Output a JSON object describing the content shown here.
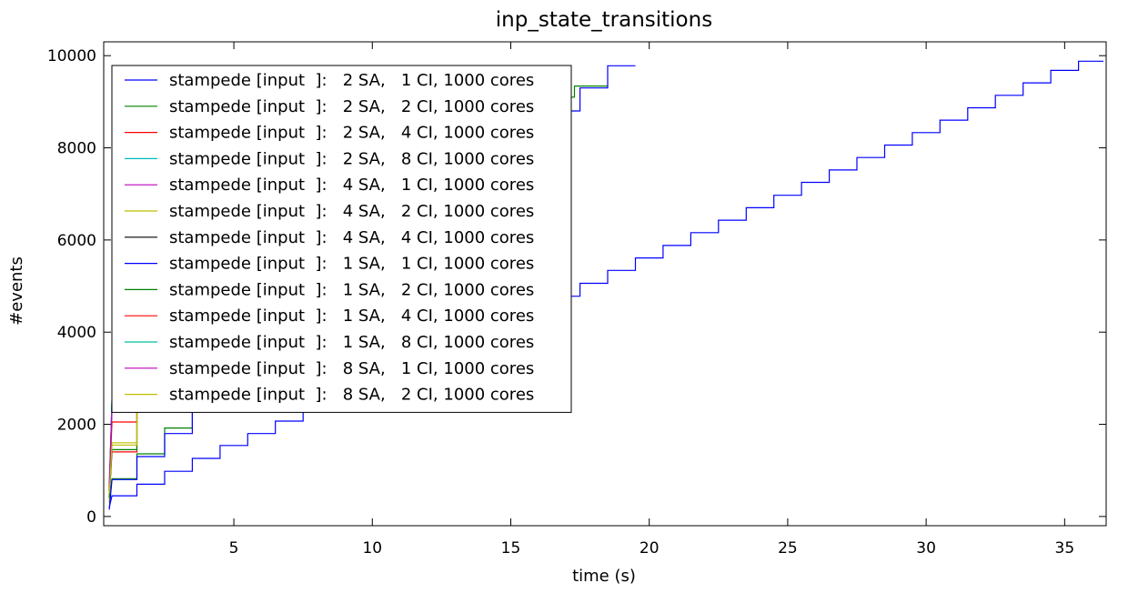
{
  "chart_data": {
    "type": "line",
    "step": true,
    "title": "inp_state_transitions",
    "xlabel": "time (s)",
    "ylabel": "#events",
    "xlim": [
      0.3,
      36.5
    ],
    "ylim": [
      -200,
      10300
    ],
    "xticks": [
      5,
      10,
      15,
      20,
      25,
      30,
      35
    ],
    "yticks": [
      0,
      2000,
      4000,
      6000,
      8000,
      10000
    ],
    "grid": false,
    "legend_position": "top-left",
    "series": [
      {
        "name": "stampede [input  ]:   2 SA,   1 CI, 1000 cores",
        "color": "#0000ff",
        "points": [
          [
            0.5,
            200
          ],
          [
            0.6,
            450
          ],
          [
            1.5,
            450
          ],
          [
            1.5,
            700
          ],
          [
            2.5,
            700
          ],
          [
            2.5,
            980
          ],
          [
            3.5,
            980
          ],
          [
            3.5,
            1260
          ],
          [
            4.5,
            1260
          ],
          [
            4.5,
            1540
          ],
          [
            5.5,
            1540
          ],
          [
            5.5,
            1800
          ],
          [
            6.5,
            1800
          ],
          [
            6.5,
            2070
          ],
          [
            7.5,
            2070
          ],
          [
            7.5,
            2340
          ],
          [
            8.5,
            2340
          ],
          [
            8.5,
            2600
          ],
          [
            16.5,
            4780
          ],
          [
            17.5,
            4780
          ],
          [
            17.5,
            5060
          ],
          [
            18.5,
            5060
          ],
          [
            18.5,
            5340
          ],
          [
            19.5,
            5340
          ],
          [
            19.5,
            5610
          ],
          [
            20.5,
            5610
          ],
          [
            20.5,
            5880
          ],
          [
            21.5,
            5880
          ],
          [
            21.5,
            6160
          ],
          [
            22.5,
            6160
          ],
          [
            22.5,
            6430
          ],
          [
            23.5,
            6430
          ],
          [
            23.5,
            6700
          ],
          [
            24.5,
            6700
          ],
          [
            24.5,
            6970
          ],
          [
            25.5,
            6970
          ],
          [
            25.5,
            7250
          ],
          [
            26.5,
            7250
          ],
          [
            26.5,
            7520
          ],
          [
            27.5,
            7520
          ],
          [
            27.5,
            7790
          ],
          [
            28.5,
            7790
          ],
          [
            28.5,
            8060
          ],
          [
            29.5,
            8060
          ],
          [
            29.5,
            8330
          ],
          [
            30.5,
            8330
          ],
          [
            30.5,
            8600
          ],
          [
            31.5,
            8600
          ],
          [
            31.5,
            8870
          ],
          [
            32.5,
            8870
          ],
          [
            32.5,
            9140
          ],
          [
            33.5,
            9140
          ],
          [
            33.5,
            9410
          ],
          [
            34.5,
            9410
          ],
          [
            34.5,
            9680
          ],
          [
            35.5,
            9680
          ],
          [
            35.5,
            9880
          ],
          [
            36.4,
            9880
          ]
        ]
      },
      {
        "name": "stampede [input  ]:   2 SA,   2 CI, 1000 cores",
        "color": "#008000",
        "points": [
          [
            0.5,
            300
          ],
          [
            0.6,
            820
          ],
          [
            1.5,
            820
          ],
          [
            1.5,
            1360
          ],
          [
            2.5,
            1360
          ],
          [
            2.5,
            1920
          ],
          [
            3.5,
            1920
          ],
          [
            3.5,
            2450
          ],
          [
            4.5,
            2450
          ],
          [
            4.5,
            2550
          ],
          [
            17.0,
            9100
          ],
          [
            17.3,
            9100
          ],
          [
            17.3,
            9340
          ],
          [
            18.5,
            9340
          ]
        ]
      },
      {
        "name": "stampede [input  ]:   2 SA,   4 CI, 1000 cores",
        "color": "#ff0000",
        "points": [
          [
            0.5,
            400
          ],
          [
            0.6,
            1400
          ],
          [
            1.5,
            1400
          ],
          [
            1.5,
            2300
          ],
          [
            2.5,
            2300
          ],
          [
            2.5,
            2500
          ]
        ]
      },
      {
        "name": "stampede [input  ]:   2 SA,   8 CI, 1000 cores",
        "color": "#00bfbf",
        "points": [
          [
            0.5,
            500
          ],
          [
            0.6,
            2500
          ],
          [
            1.5,
            2500
          ]
        ]
      },
      {
        "name": "stampede [input  ]:   4 SA,   1 CI, 1000 cores",
        "color": "#bf00bf",
        "points": [
          [
            0.5,
            500
          ],
          [
            0.6,
            2350
          ],
          [
            1.5,
            2350
          ],
          [
            1.5,
            2500
          ]
        ]
      },
      {
        "name": "stampede [input  ]:   4 SA,   2 CI, 1000 cores",
        "color": "#bfbf00",
        "points": [
          [
            0.5,
            300
          ],
          [
            0.6,
            1600
          ],
          [
            1.5,
            1600
          ],
          [
            1.5,
            2500
          ]
        ]
      },
      {
        "name": "stampede [input  ]:   4 SA,   4 CI, 1000 cores",
        "color": "#000000",
        "points": [
          [
            0.5,
            500
          ],
          [
            0.6,
            2550
          ],
          [
            1.0,
            2550
          ]
        ]
      },
      {
        "name": "stampede [input  ]:   1 SA,   1 CI, 1000 cores",
        "color": "#0000ff",
        "points": [
          [
            0.5,
            150
          ],
          [
            0.6,
            800
          ],
          [
            1.5,
            800
          ],
          [
            1.5,
            1300
          ],
          [
            2.5,
            1300
          ],
          [
            2.5,
            1800
          ],
          [
            3.5,
            1800
          ],
          [
            3.5,
            2300
          ],
          [
            4.5,
            2300
          ],
          [
            4.5,
            2550
          ],
          [
            17.0,
            8800
          ],
          [
            17.5,
            8800
          ],
          [
            17.5,
            9300
          ],
          [
            18.5,
            9300
          ],
          [
            18.5,
            9780
          ],
          [
            19.5,
            9780
          ]
        ]
      },
      {
        "name": "stampede [input  ]:   1 SA,   2 CI, 1000 cores",
        "color": "#008000",
        "points": [
          [
            0.5,
            400
          ],
          [
            0.6,
            1450
          ],
          [
            1.5,
            1450
          ],
          [
            1.5,
            2450
          ],
          [
            2.5,
            2450
          ]
        ]
      },
      {
        "name": "stampede [input  ]:   1 SA,   4 CI, 1000 cores",
        "color": "#ff0000",
        "points": [
          [
            0.5,
            600
          ],
          [
            0.6,
            2050
          ],
          [
            1.5,
            2050
          ],
          [
            1.5,
            2400
          ],
          [
            2.0,
            2400
          ]
        ]
      },
      {
        "name": "stampede [input  ]:   1 SA,   8 CI, 1000 cores",
        "color": "#00bfa0",
        "points": [
          [
            0.5,
            700
          ],
          [
            0.6,
            2500
          ],
          [
            1.2,
            2500
          ]
        ]
      },
      {
        "name": "stampede [input  ]:   8 SA,   1 CI, 1000 cores",
        "color": "#bf00bf",
        "points": [
          [
            0.5,
            700
          ],
          [
            0.6,
            2350
          ],
          [
            1.2,
            2350
          ]
        ]
      },
      {
        "name": "stampede [input  ]:   8 SA,   2 CI, 1000 cores",
        "color": "#bfbf00",
        "points": [
          [
            0.5,
            500
          ],
          [
            0.6,
            1550
          ],
          [
            1.5,
            1550
          ],
          [
            1.5,
            2450
          ]
        ]
      }
    ]
  }
}
